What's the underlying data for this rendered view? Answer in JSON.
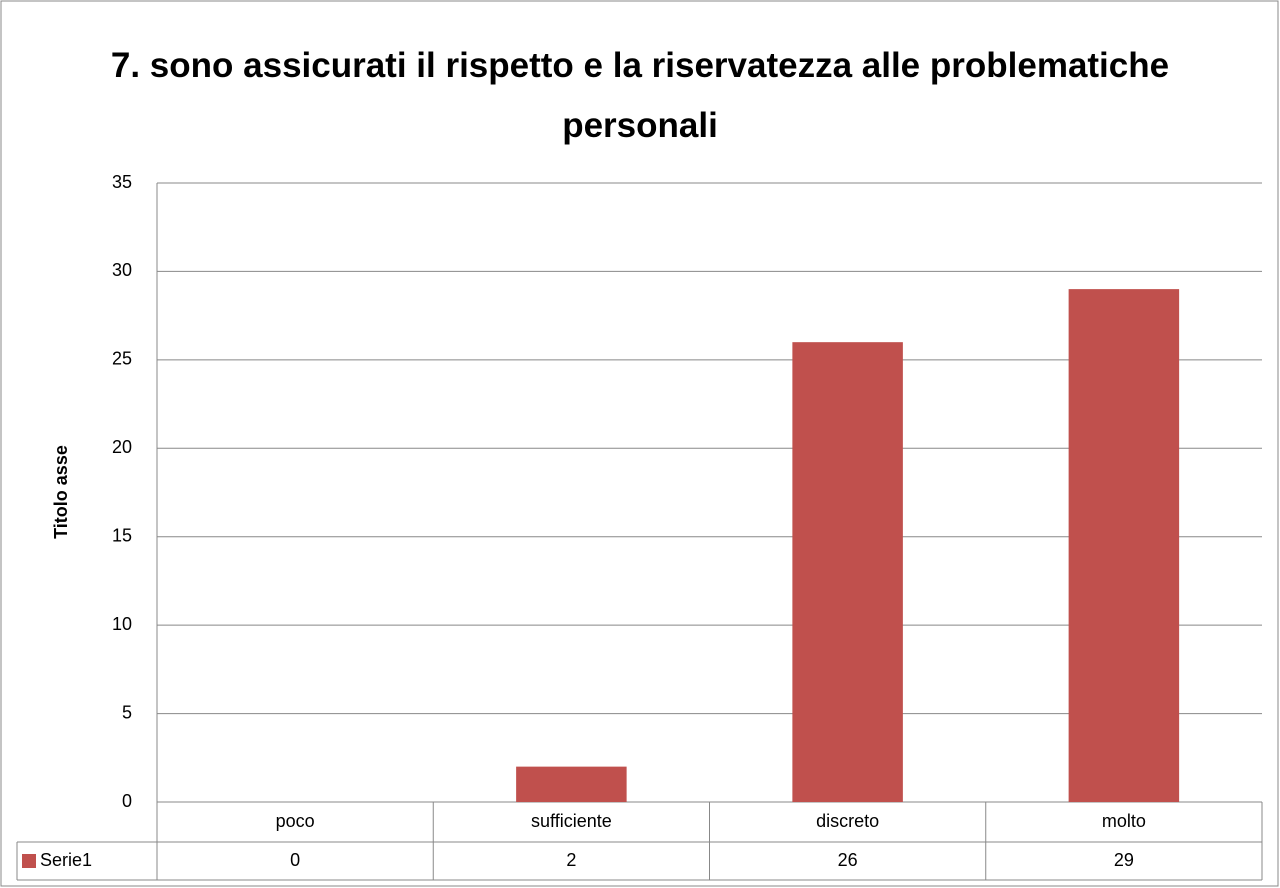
{
  "chart_data": {
    "type": "bar",
    "title": "7. sono assicurati il rispetto e la riservatezza alle problematiche personali",
    "y_label": "Titolo asse",
    "categories": [
      "poco",
      "sufficiente",
      "discreto",
      "molto"
    ],
    "series": [
      {
        "name": "Serie1",
        "color": "#c0504d",
        "values": [
          0,
          2,
          26,
          29
        ]
      }
    ],
    "ylim": [
      0,
      35
    ],
    "yticks": [
      0,
      5,
      10,
      15,
      20,
      25,
      30,
      35
    ],
    "grid": true,
    "data_table": true
  }
}
